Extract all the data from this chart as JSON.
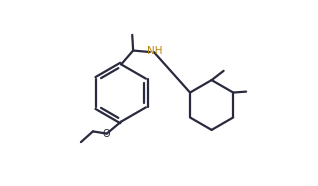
{
  "line_color": "#2a2a3e",
  "nh_color": "#b8860b",
  "background": "#ffffff",
  "line_width": 1.6,
  "dbo": 0.011,
  "figsize": [
    3.18,
    1.86
  ],
  "dpi": 100
}
